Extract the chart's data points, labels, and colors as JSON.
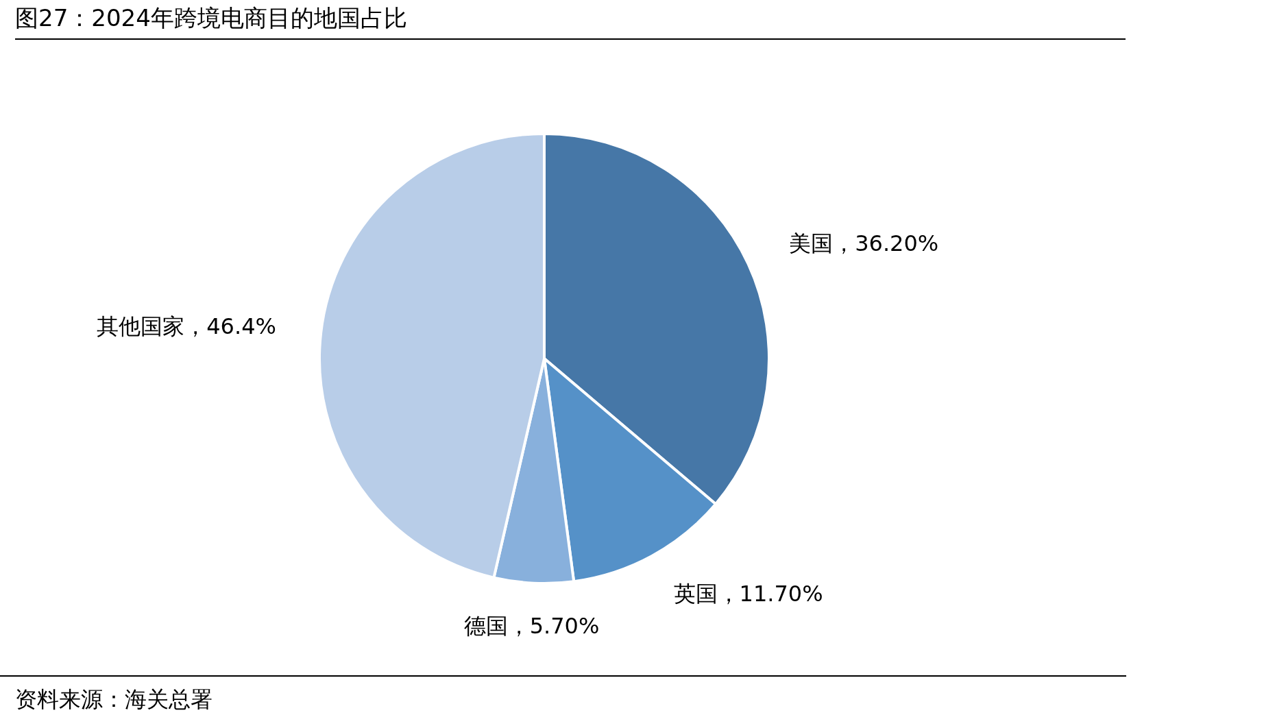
{
  "chart_data": {
    "type": "pie",
    "title": "图27：2024年跨境电商目的地国占比",
    "categories": [
      "美国",
      "英国",
      "德国",
      "其他国家"
    ],
    "values": [
      36.2,
      11.7,
      5.7,
      46.4
    ],
    "value_labels": [
      "36.20%",
      "11.70%",
      "5.70%",
      "46.4%"
    ],
    "colors": [
      "#4677a7",
      "#5591c8",
      "#88b0dc",
      "#b8cde8"
    ],
    "annotations": [
      "资料来源：海关总署"
    ]
  }
}
